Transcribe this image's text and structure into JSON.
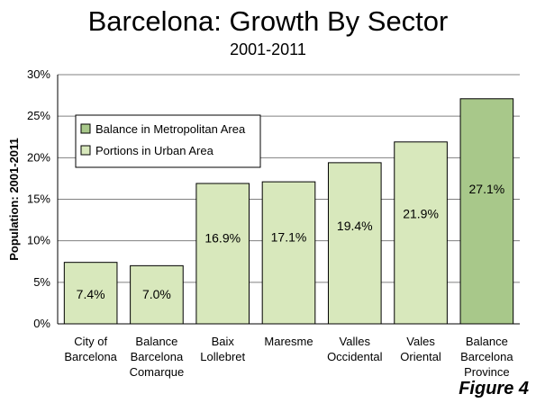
{
  "figure_label": "Figure 4",
  "colors": {
    "urban_fill": "#d8e8bc",
    "metro_fill": "#a8c88a",
    "bar_stroke": "#000000",
    "grid": "#808080"
  },
  "chart_data": {
    "type": "bar",
    "title": "Barcelona: Growth By Sector",
    "subtitle": "2001-2011",
    "ylabel": "Population: 2001-2011",
    "xlabel": "",
    "ylim": [
      0,
      30
    ],
    "yticks": [
      "0%",
      "5%",
      "10%",
      "15%",
      "20%",
      "25%",
      "30%"
    ],
    "grid": true,
    "legend_position": "top-left",
    "categories": [
      [
        "City of",
        "Barcelona"
      ],
      [
        "Balance",
        "Barcelona",
        "Comarque"
      ],
      [
        "Baix",
        "Lollebret"
      ],
      [
        "Maresme"
      ],
      [
        "Valles",
        "Occidental"
      ],
      [
        "Vales",
        "Oriental"
      ],
      [
        "Balance",
        "Barcelona",
        "Province"
      ]
    ],
    "values": [
      7.4,
      7.0,
      16.9,
      17.1,
      19.4,
      21.9,
      27.1
    ],
    "value_labels": [
      "7.4%",
      "7.0%",
      "16.9%",
      "17.1%",
      "19.4%",
      "21.9%",
      "27.1%"
    ],
    "series_assignment": [
      "urban",
      "urban",
      "urban",
      "urban",
      "urban",
      "urban",
      "metro"
    ],
    "legend": [
      {
        "key": "metro",
        "name": "Balance in Metropolitan Area"
      },
      {
        "key": "urban",
        "name": "Portions in Urban Area"
      }
    ]
  }
}
